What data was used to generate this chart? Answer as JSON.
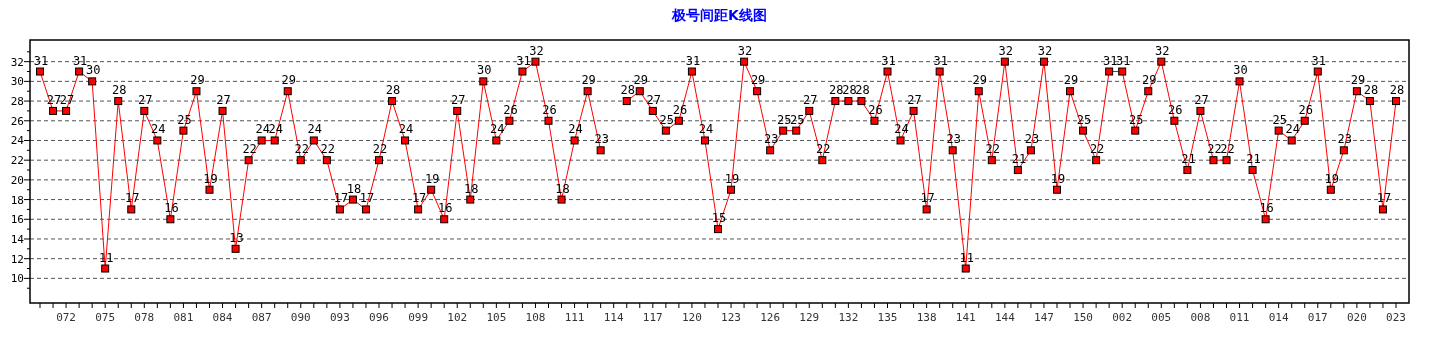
{
  "chart_data": {
    "type": "line",
    "title": "极号间距K线图",
    "categories": [
      null,
      null,
      "072",
      null,
      null,
      "075",
      null,
      null,
      "078",
      null,
      null,
      "081",
      null,
      null,
      "084",
      null,
      null,
      "087",
      null,
      null,
      "090",
      null,
      null,
      "093",
      null,
      null,
      "096",
      null,
      null,
      "099",
      null,
      null,
      "102",
      null,
      null,
      "105",
      null,
      null,
      "108",
      null,
      null,
      "111",
      null,
      null,
      "114",
      null,
      null,
      "117",
      null,
      null,
      "120",
      null,
      null,
      "123",
      null,
      null,
      "126",
      null,
      null,
      "129",
      null,
      null,
      "132",
      null,
      null,
      "135",
      null,
      null,
      "138",
      null,
      null,
      "141",
      null,
      null,
      "144",
      null,
      null,
      "147",
      null,
      null,
      "150",
      null,
      null,
      "002",
      null,
      null,
      "005",
      null,
      null,
      "008",
      null,
      null,
      "011",
      null,
      null,
      "014",
      null,
      null,
      "017",
      null,
      null,
      "020",
      null,
      null,
      "023"
    ],
    "series": [
      {
        "color": "#ff0000",
        "values": [
          31,
          27,
          27,
          31,
          30,
          11,
          28,
          17,
          27,
          24,
          16,
          25,
          29,
          19,
          27,
          13,
          22,
          24,
          24,
          29,
          22,
          24,
          22,
          17,
          18,
          17,
          22,
          28,
          24,
          17,
          19,
          16,
          27,
          18,
          30,
          24,
          26,
          31,
          32,
          26,
          18,
          24,
          29,
          23,
          null,
          28,
          29,
          27,
          25,
          26,
          31,
          24,
          15,
          19,
          32,
          29,
          23,
          25,
          25,
          27,
          22,
          28,
          28,
          28,
          26,
          31,
          24,
          27,
          17,
          31,
          23,
          11,
          29,
          22,
          32,
          21,
          23,
          32,
          19,
          29,
          25,
          22,
          31,
          31,
          25,
          29,
          32,
          26,
          21,
          27,
          22,
          22,
          30,
          21,
          16,
          25,
          24,
          26,
          31,
          19,
          23,
          29,
          28,
          17,
          28
        ]
      }
    ],
    "ylim": [
      7.5,
      34.2
    ],
    "yticks": [
      {
        "value": 9,
        "label": null
      },
      10,
      {
        "value": 11,
        "label": null
      },
      12,
      {
        "value": 13,
        "label": null
      },
      14,
      {
        "value": 15,
        "label": null
      },
      16,
      {
        "value": 17,
        "label": null
      },
      18,
      {
        "value": 19,
        "label": null
      },
      20,
      {
        "value": 21,
        "label": null
      },
      22,
      {
        "value": 23,
        "label": null
      },
      24,
      {
        "value": 25,
        "label": null
      },
      26,
      {
        "value": 27,
        "label": null
      },
      28,
      {
        "value": 29,
        "label": null
      },
      30,
      {
        "value": 31,
        "label": null
      },
      32,
      {
        "value": 33,
        "label": null
      }
    ],
    "grid": "y",
    "marker": "square",
    "line_style": "solid",
    "data_labels": true
  }
}
